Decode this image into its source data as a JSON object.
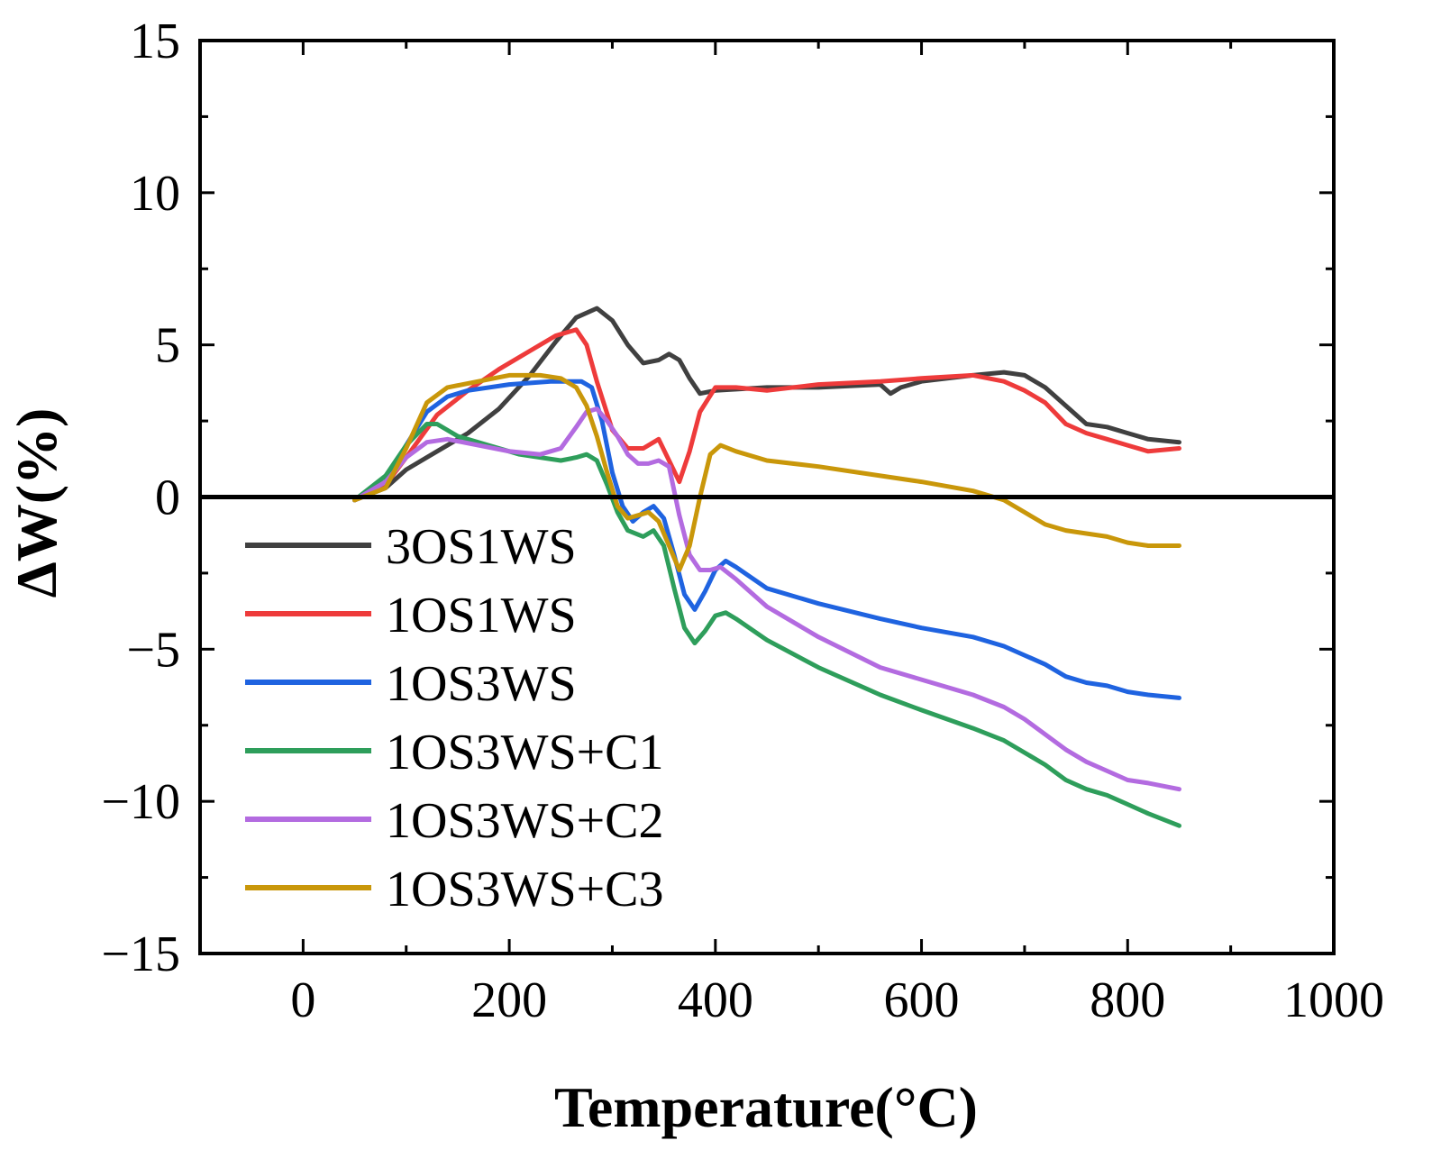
{
  "chart_data": {
    "type": "line",
    "title": "",
    "xlabel": "Temperature(°C)",
    "ylabel": "ΔW(%)",
    "xlim": [
      -100,
      1000
    ],
    "ylim": [
      -15,
      15
    ],
    "x_ticks": [
      0,
      200,
      400,
      600,
      800,
      1000
    ],
    "x_tick_labels": [
      "0",
      "200",
      "400",
      "600",
      "800",
      "1000"
    ],
    "y_ticks": [
      -15,
      -10,
      -5,
      0,
      5,
      10,
      15
    ],
    "y_tick_labels": [
      "−15",
      "−10",
      "−5",
      "0",
      "5",
      "10",
      "15"
    ],
    "reference_line_y": 0,
    "grid": false,
    "legend_position": "lower-left",
    "series": [
      {
        "name": "3OS1WS",
        "color": "#404040",
        "x": [
          50,
          80,
          100,
          130,
          160,
          190,
          220,
          245,
          265,
          285,
          300,
          315,
          330,
          345,
          355,
          365,
          375,
          385,
          400,
          450,
          500,
          560,
          570,
          580,
          600,
          650,
          680,
          700,
          720,
          740,
          760,
          780,
          800,
          820,
          850
        ],
        "y": [
          -0.1,
          0.3,
          0.9,
          1.5,
          2.1,
          2.9,
          4.0,
          5.1,
          5.9,
          6.2,
          5.8,
          5.0,
          4.4,
          4.5,
          4.7,
          4.5,
          3.9,
          3.4,
          3.5,
          3.6,
          3.6,
          3.7,
          3.4,
          3.6,
          3.8,
          4.0,
          4.1,
          4.0,
          3.6,
          3.0,
          2.4,
          2.3,
          2.1,
          1.9,
          1.8
        ]
      },
      {
        "name": "1OS1WS",
        "color": "#ee3b3b",
        "x": [
          50,
          80,
          100,
          130,
          160,
          190,
          220,
          245,
          265,
          275,
          285,
          300,
          315,
          330,
          345,
          355,
          365,
          375,
          385,
          400,
          420,
          450,
          500,
          560,
          600,
          650,
          680,
          700,
          720,
          740,
          760,
          780,
          800,
          820,
          850
        ],
        "y": [
          -0.1,
          0.4,
          1.3,
          2.7,
          3.5,
          4.2,
          4.8,
          5.3,
          5.5,
          5.0,
          3.8,
          2.2,
          1.6,
          1.6,
          1.9,
          1.2,
          0.5,
          1.5,
          2.8,
          3.6,
          3.6,
          3.5,
          3.7,
          3.8,
          3.9,
          4.0,
          3.8,
          3.5,
          3.1,
          2.4,
          2.1,
          1.9,
          1.7,
          1.5,
          1.6
        ]
      },
      {
        "name": "1OS3WS",
        "color": "#1f63e0",
        "x": [
          50,
          80,
          100,
          120,
          140,
          160,
          200,
          240,
          260,
          270,
          280,
          290,
          300,
          310,
          320,
          330,
          340,
          350,
          360,
          370,
          380,
          390,
          400,
          410,
          420,
          450,
          500,
          560,
          600,
          650,
          680,
          700,
          720,
          740,
          760,
          780,
          800,
          820,
          850
        ],
        "y": [
          -0.1,
          0.5,
          1.7,
          2.8,
          3.3,
          3.5,
          3.7,
          3.8,
          3.8,
          3.8,
          3.6,
          2.5,
          0.8,
          -0.3,
          -0.8,
          -0.5,
          -0.3,
          -0.7,
          -1.9,
          -3.2,
          -3.7,
          -3.1,
          -2.4,
          -2.1,
          -2.3,
          -3.0,
          -3.5,
          -4.0,
          -4.3,
          -4.6,
          -4.9,
          -5.2,
          -5.5,
          -5.9,
          -6.1,
          -6.2,
          -6.4,
          -6.5,
          -6.6
        ]
      },
      {
        "name": "1OS3WS+C1",
        "color": "#2e9e5b",
        "x": [
          50,
          80,
          100,
          120,
          130,
          150,
          180,
          210,
          250,
          265,
          275,
          285,
          295,
          305,
          315,
          330,
          340,
          350,
          360,
          370,
          380,
          390,
          400,
          410,
          420,
          450,
          500,
          560,
          600,
          650,
          680,
          700,
          720,
          740,
          760,
          780,
          800,
          820,
          850
        ],
        "y": [
          -0.1,
          0.7,
          1.7,
          2.4,
          2.4,
          2.0,
          1.7,
          1.4,
          1.2,
          1.3,
          1.4,
          1.2,
          0.4,
          -0.5,
          -1.1,
          -1.3,
          -1.1,
          -1.6,
          -3.0,
          -4.3,
          -4.8,
          -4.4,
          -3.9,
          -3.8,
          -4.0,
          -4.7,
          -5.6,
          -6.5,
          -7.0,
          -7.6,
          -8.0,
          -8.4,
          -8.8,
          -9.3,
          -9.6,
          -9.8,
          -10.1,
          -10.4,
          -10.8
        ]
      },
      {
        "name": "1OS3WS+C2",
        "color": "#b36be0",
        "x": [
          50,
          80,
          100,
          120,
          140,
          170,
          200,
          230,
          250,
          265,
          275,
          285,
          295,
          305,
          315,
          325,
          335,
          345,
          355,
          365,
          375,
          385,
          395,
          405,
          420,
          450,
          500,
          560,
          600,
          650,
          680,
          700,
          720,
          740,
          760,
          780,
          800,
          820,
          850
        ],
        "y": [
          -0.1,
          0.5,
          1.3,
          1.8,
          1.9,
          1.7,
          1.5,
          1.4,
          1.6,
          2.3,
          2.8,
          2.9,
          2.5,
          2.0,
          1.4,
          1.1,
          1.1,
          1.2,
          1.0,
          -0.6,
          -1.9,
          -2.4,
          -2.4,
          -2.3,
          -2.7,
          -3.6,
          -4.6,
          -5.6,
          -6.0,
          -6.5,
          -6.9,
          -7.3,
          -7.8,
          -8.3,
          -8.7,
          -9.0,
          -9.3,
          -9.4,
          -9.6
        ]
      },
      {
        "name": "1OS3WS+C3",
        "color": "#c9970a",
        "x": [
          50,
          80,
          100,
          120,
          140,
          170,
          200,
          230,
          250,
          265,
          275,
          285,
          295,
          305,
          315,
          325,
          335,
          345,
          355,
          365,
          375,
          385,
          395,
          405,
          420,
          450,
          500,
          560,
          600,
          650,
          680,
          700,
          720,
          740,
          760,
          780,
          800,
          820,
          850
        ],
        "y": [
          -0.1,
          0.3,
          1.6,
          3.1,
          3.6,
          3.8,
          4.0,
          4.0,
          3.9,
          3.6,
          3.0,
          2.0,
          0.8,
          -0.3,
          -0.7,
          -0.6,
          -0.5,
          -0.8,
          -1.6,
          -2.4,
          -1.6,
          0.0,
          1.4,
          1.7,
          1.5,
          1.2,
          1.0,
          0.7,
          0.5,
          0.2,
          -0.1,
          -0.5,
          -0.9,
          -1.1,
          -1.2,
          -1.3,
          -1.5,
          -1.6,
          -1.6
        ]
      }
    ]
  }
}
